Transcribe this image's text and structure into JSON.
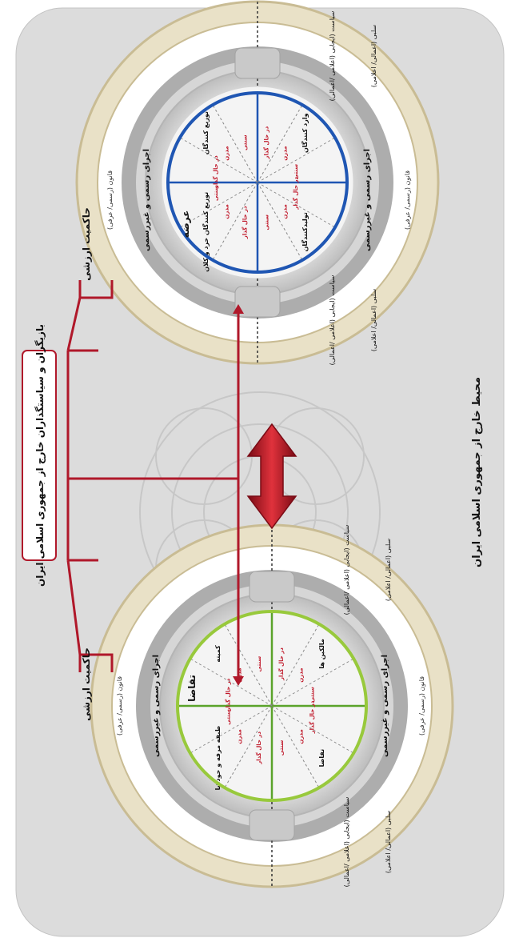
{
  "title_outer": "محیط خارج از جمهوری اسلامی ایران",
  "actors_label": "بازیگران و سیاستگذاران خارج از جمهوری اسلامی ایران",
  "top_circle": {
    "sovereignty": "حاکمیت ارزشی",
    "execution_left": "اجرای رسمی و غیررسمی",
    "execution_right": "اجرای رسمی و غیررسمی",
    "policy_top": "سیاست (ایجابی (اعلامی /اعمالی)",
    "policy_bottom": "سیاست (ایجابی (اعلامی /اعمالی)",
    "policy_neg_top": "(اعمالی/ اعلامی) سلبی",
    "policy_neg_bottom": "(اعمالی/ اعلامی) سلبی",
    "law_left": "قانون (رسمی/ عرفی)",
    "law_right": "قانون (رسمی/ عرفی)",
    "center_label": "عرضه",
    "segments": [
      {
        "main": "وارد کنندگان",
        "sub": [
          "در حال گذار",
          "مدرن",
          "سنتی"
        ]
      },
      {
        "main": "تولیدکنندگان",
        "sub": [
          "در حال گذار",
          "مدرن",
          "سنتی"
        ]
      },
      {
        "main": "توزیع کنندگان خرد و کلان",
        "sub": [
          "در حال گذار",
          "مدرن",
          "سنتی"
        ]
      },
      {
        "main": "توزیع کنندگان",
        "sub": [
          "در حال گذار",
          "مدرن",
          "سنتی"
        ]
      }
    ]
  },
  "bottom_circle": {
    "sovereignty": "حاکمیت ارزشی",
    "execution_left": "اجرای رسمی و غیررسمی",
    "execution_right": "اجرای رسمی و غیررسمی",
    "policy_top": "سیاست (ایجابی (اعلامی /اعمالی)",
    "policy_bottom": "سیاست (ایجابی (اعلامی /اعمالی)",
    "policy_neg_top": "(اعمالی/ اعلامی) سلبی",
    "policy_neg_bottom": "(اعمالی/ اعلامی) سلبی",
    "law_left": "قانون (رسمی/ عرفی)",
    "law_right": "قانون (رسمی/ عرفی)",
    "center_label": "تقاضا",
    "segments": [
      {
        "main": "مالکین ها",
        "sub": [
          "در حال گذار",
          "مدرن",
          "سنتی"
        ]
      },
      {
        "main": "تقاضا",
        "sub": [
          "در حال گذار",
          "مدرن",
          "سنتی"
        ]
      },
      {
        "main": "طبقه مرفه و خودشا",
        "sub": [
          "در حال گذار",
          "مدرن",
          "سنتی"
        ]
      },
      {
        "main": "کمیته",
        "sub": [
          "در حال گذار",
          "مدرن",
          "سنتی"
        ]
      }
    ]
  },
  "colors": {
    "panel": "#dcdcdc",
    "ring_outer": "#e9e1c7",
    "ring_border": "#c9bc94",
    "ring_gray": "#a9a9a9",
    "red": "#b0182a",
    "blue": "#1f56b3",
    "green": "#5aa32a",
    "lime": "#98c93c"
  }
}
